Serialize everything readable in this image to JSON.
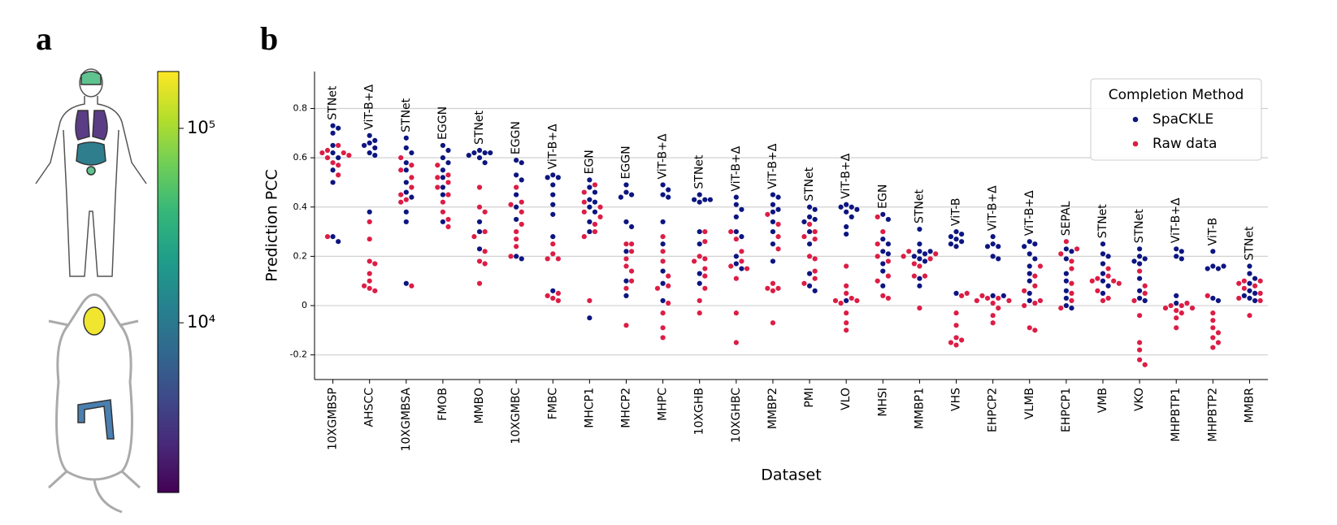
{
  "chart_data": [
    {
      "type": "colorbar",
      "panel_label": "a",
      "colormap": "viridis",
      "log_scale": true,
      "ylim": [
        1340,
        196000
      ],
      "yticks": [
        {
          "value": 10000,
          "label": "10⁴"
        },
        {
          "value": 100000,
          "label": "10⁵"
        }
      ]
    },
    {
      "type": "swarm",
      "panel_label": "b",
      "x_label": "Dataset",
      "y_label": "Prediction PCC",
      "ylim": [
        -0.3,
        0.95
      ],
      "yticks": [
        -0.2,
        0.0,
        0.2,
        0.4,
        0.6,
        0.8
      ],
      "grid": true,
      "legend_title": "Completion Method",
      "legend_position": "upper right",
      "categories": [
        "10XGMBSP",
        "AHSCC",
        "10XGMBSA",
        "FMOB",
        "MMBO",
        "10XGMBC",
        "FMBC",
        "MHCP1",
        "MHCP2",
        "MHPC",
        "10XGHB",
        "10XGHBC",
        "MMBP2",
        "PMI",
        "VLO",
        "MHSI",
        "MMBP1",
        "VHS",
        "EHPCP2",
        "VLMB",
        "EHPCP1",
        "VMB",
        "VKO",
        "MHPBTP1",
        "MHPBTP2",
        "MMBR"
      ],
      "annotations": [
        "STNet",
        "ViT-B+Δ",
        "STNet",
        "EGGN",
        "STNet",
        "EGGN",
        "ViT-B+Δ",
        "EGN",
        "EGGN",
        "ViT-B+Δ",
        "STNet",
        "ViT-B+Δ",
        "ViT-B+Δ",
        "STNet",
        "ViT-B+Δ",
        "EGN",
        "STNet",
        "ViT-B",
        "ViT-B+Δ",
        "ViT-B+Δ",
        "SEPAL",
        "STNet",
        "STNet",
        "ViT-B+Δ",
        "ViT-B",
        "STNet"
      ],
      "series": [
        {
          "name": "SpaCKLE",
          "color": "#0c1580",
          "values": [
            [
              0.73,
              0.72,
              0.7,
              0.65,
              0.62,
              0.6,
              0.55,
              0.5,
              0.28,
              0.26
            ],
            [
              0.69,
              0.67,
              0.66,
              0.65,
              0.64,
              0.62,
              0.61,
              0.38
            ],
            [
              0.68,
              0.64,
              0.62,
              0.58,
              0.55,
              0.5,
              0.46,
              0.44,
              0.38,
              0.34,
              0.09
            ],
            [
              0.65,
              0.63,
              0.6,
              0.58,
              0.55,
              0.52,
              0.48,
              0.45,
              0.34
            ],
            [
              0.63,
              0.62,
              0.62,
              0.62,
              0.61,
              0.6,
              0.58,
              0.34,
              0.3,
              0.23
            ],
            [
              0.59,
              0.58,
              0.53,
              0.51,
              0.45,
              0.4,
              0.35,
              0.2,
              0.19
            ],
            [
              0.53,
              0.52,
              0.52,
              0.49,
              0.45,
              0.41,
              0.37,
              0.28,
              0.06
            ],
            [
              0.51,
              0.48,
              0.46,
              0.43,
              0.42,
              0.4,
              0.38,
              0.34,
              0.3,
              -0.05
            ],
            [
              0.49,
              0.46,
              0.45,
              0.44,
              0.34,
              0.32,
              0.22,
              0.1,
              0.04
            ],
            [
              0.49,
              0.47,
              0.45,
              0.44,
              0.34,
              0.25,
              0.14,
              0.09,
              0.02
            ],
            [
              0.45,
              0.43,
              0.43,
              0.42,
              0.43,
              0.3,
              0.25,
              0.13,
              0.09
            ],
            [
              0.44,
              0.41,
              0.39,
              0.36,
              0.3,
              0.28,
              0.2,
              0.17,
              0.15
            ],
            [
              0.45,
              0.44,
              0.41,
              0.39,
              0.38,
              0.34,
              0.3,
              0.25,
              0.18
            ],
            [
              0.4,
              0.39,
              0.36,
              0.35,
              0.34,
              0.3,
              0.25,
              0.13,
              0.08,
              0.06
            ],
            [
              0.41,
              0.4,
              0.4,
              0.39,
              0.38,
              0.36,
              0.32,
              0.29,
              0.02
            ],
            [
              0.37,
              0.35,
              0.27,
              0.25,
              0.22,
              0.21,
              0.17,
              0.14,
              0.08
            ],
            [
              0.31,
              0.25,
              0.22,
              0.22,
              0.21,
              0.2,
              0.19,
              0.18,
              0.11,
              0.08
            ],
            [
              0.3,
              0.29,
              0.28,
              0.27,
              0.26,
              0.25,
              0.24,
              0.05
            ],
            [
              0.28,
              0.25,
              0.24,
              0.24,
              0.2,
              0.19,
              0.04,
              0.04
            ],
            [
              0.26,
              0.25,
              0.24,
              0.21,
              0.19,
              0.16,
              0.13,
              0.1,
              0.05,
              0.02
            ],
            [
              0.23,
              0.22,
              0.19,
              0.13,
              0.1,
              0.06,
              0.03,
              0.0,
              -0.01
            ],
            [
              0.25,
              0.21,
              0.2,
              0.17,
              0.13,
              0.1,
              0.08,
              0.05
            ],
            [
              0.23,
              0.2,
              0.19,
              0.18,
              0.17,
              0.11,
              0.06,
              0.03,
              0.02
            ],
            [
              0.23,
              0.22,
              0.2,
              0.19,
              0.04,
              0.01
            ],
            [
              0.22,
              0.16,
              0.16,
              0.15,
              0.15,
              0.03,
              0.02
            ],
            [
              0.16,
              0.13,
              0.11,
              0.09,
              0.06,
              0.05,
              0.04,
              0.03,
              0.02
            ]
          ]
        },
        {
          "name": "Raw data",
          "color": "#dc1d45",
          "values": [
            [
              0.65,
              0.63,
              0.62,
              0.62,
              0.61,
              0.6,
              0.58,
              0.57,
              0.53,
              0.28
            ],
            [
              0.34,
              0.27,
              0.18,
              0.17,
              0.13,
              0.1,
              0.07,
              0.06,
              0.08
            ],
            [
              0.6,
              0.57,
              0.55,
              0.52,
              0.48,
              0.45,
              0.43,
              0.42,
              0.08
            ],
            [
              0.57,
              0.53,
              0.52,
              0.5,
              0.48,
              0.45,
              0.42,
              0.38,
              0.35,
              0.32
            ],
            [
              0.48,
              0.4,
              0.38,
              0.3,
              0.28,
              0.22,
              0.18,
              0.17,
              0.09
            ],
            [
              0.48,
              0.42,
              0.41,
              0.38,
              0.33,
              0.3,
              0.27,
              0.24,
              0.2
            ],
            [
              0.25,
              0.21,
              0.19,
              0.19,
              0.05,
              0.04,
              0.03,
              0.02
            ],
            [
              0.49,
              0.46,
              0.42,
              0.4,
              0.38,
              0.36,
              0.33,
              0.3,
              0.28,
              0.02
            ],
            [
              0.25,
              0.25,
              0.22,
              0.19,
              0.16,
              0.14,
              0.1,
              0.07,
              -0.08
            ],
            [
              0.28,
              0.22,
              0.18,
              0.12,
              0.08,
              0.07,
              0.01,
              -0.03,
              -0.09,
              -0.13
            ],
            [
              0.3,
              0.26,
              0.2,
              0.19,
              0.18,
              0.15,
              0.12,
              0.07,
              0.02,
              -0.03
            ],
            [
              0.3,
              0.27,
              0.22,
              0.18,
              0.16,
              0.15,
              0.11,
              -0.03,
              -0.15
            ],
            [
              0.37,
              0.33,
              0.28,
              0.23,
              0.09,
              0.07,
              0.07,
              0.06,
              -0.07
            ],
            [
              0.33,
              0.3,
              0.28,
              0.27,
              0.2,
              0.19,
              0.14,
              0.11,
              0.09
            ],
            [
              0.16,
              0.08,
              0.05,
              0.03,
              0.02,
              0.02,
              0.01,
              -0.03,
              -0.07,
              -0.1
            ],
            [
              0.36,
              0.3,
              0.25,
              0.2,
              0.18,
              0.12,
              0.1,
              0.04,
              0.03
            ],
            [
              0.22,
              0.21,
              0.2,
              0.19,
              0.17,
              0.16,
              0.12,
              0.12,
              -0.01
            ],
            [
              0.05,
              0.04,
              -0.03,
              -0.08,
              -0.13,
              -0.14,
              -0.15,
              -0.16
            ],
            [
              0.04,
              0.03,
              0.03,
              0.02,
              0.02,
              0.01,
              -0.01,
              -0.04,
              -0.07
            ],
            [
              0.16,
              0.12,
              0.08,
              0.06,
              0.02,
              0.01,
              0.0,
              -0.09,
              -0.1
            ],
            [
              0.26,
              0.23,
              0.21,
              0.18,
              0.15,
              0.09,
              0.05,
              0.02,
              -0.01
            ],
            [
              0.15,
              0.12,
              0.11,
              0.1,
              0.1,
              0.09,
              0.06,
              0.03,
              0.02
            ],
            [
              0.14,
              0.08,
              0.05,
              0.02,
              -0.04,
              -0.15,
              -0.18,
              -0.22,
              -0.24
            ],
            [
              0.01,
              0.0,
              0.0,
              -0.01,
              -0.01,
              -0.02,
              -0.03,
              -0.05,
              -0.09
            ],
            [
              0.04,
              -0.03,
              -0.06,
              -0.09,
              -0.11,
              -0.13,
              -0.15,
              -0.17
            ],
            [
              0.1,
              0.1,
              0.09,
              0.08,
              0.07,
              0.05,
              0.03,
              0.02,
              -0.04
            ]
          ]
        }
      ]
    }
  ]
}
